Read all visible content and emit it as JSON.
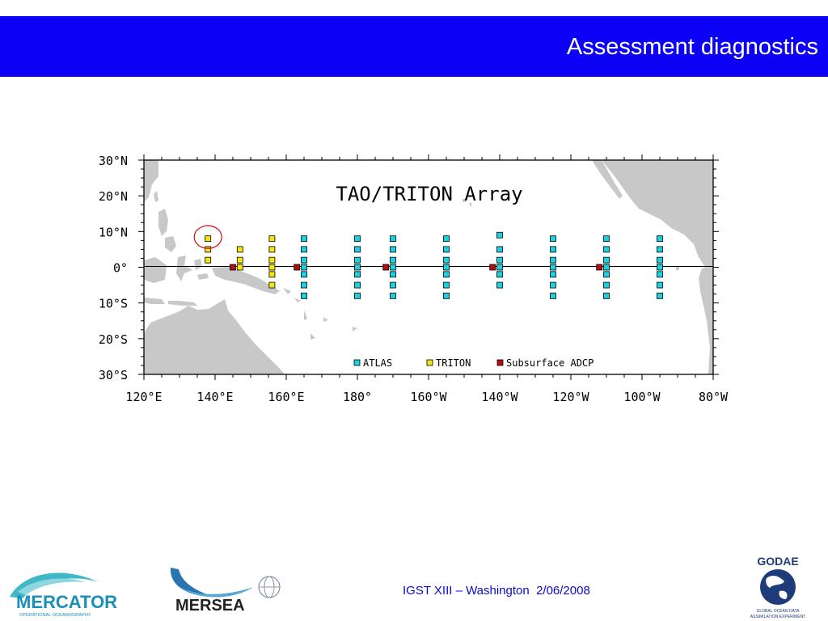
{
  "header": {
    "title": "Assessment diagnostics"
  },
  "map": {
    "title": "TAO/TRITON Array",
    "lat_labels": [
      "30°N",
      "20°N",
      "10°N",
      "0°",
      "10°S",
      "20°S",
      "30°S"
    ],
    "lon_labels": [
      "120°E",
      "140°E",
      "160°E",
      "180°",
      "160°W",
      "140°W",
      "120°W",
      "100°W",
      "80°W"
    ],
    "lon_range": [
      120,
      280
    ],
    "lat_range": [
      -30,
      30
    ],
    "colors": {
      "land": "#c8c8c8",
      "ocean": "#ffffff",
      "ATLAS": "#19d2e1",
      "TRITON": "#f5e612",
      "Subsurface ADCP": "#b30f0f",
      "highlight": "#d51a1a"
    },
    "legend": [
      {
        "key": "ATLAS",
        "label": "ATLAS"
      },
      {
        "key": "TRITON",
        "label": "TRITON"
      },
      {
        "key": "Subsurface ADCP",
        "label": "Subsurface ADCP"
      }
    ],
    "moorings": {
      "TRITON": [
        {
          "lon": 138,
          "lats": [
            8,
            5,
            2
          ]
        },
        {
          "lon": 147,
          "lats": [
            5,
            2,
            0
          ]
        },
        {
          "lon": 156,
          "lats": [
            8,
            5,
            2,
            0,
            -2,
            -5
          ]
        }
      ],
      "ATLAS": [
        {
          "lon": 165,
          "lats": [
            8,
            5,
            2,
            0,
            -2,
            -5,
            -8
          ]
        },
        {
          "lon": 180,
          "lats": [
            8,
            5,
            2,
            0,
            -2,
            -5,
            -8
          ]
        },
        {
          "lon": 190,
          "lats": [
            8,
            5,
            2,
            0,
            -2,
            -5,
            -8
          ]
        },
        {
          "lon": 205,
          "lats": [
            8,
            5,
            2,
            0,
            -2,
            -5,
            -8
          ]
        },
        {
          "lon": 220,
          "lats": [
            9,
            5,
            2,
            0,
            -2,
            -5
          ]
        },
        {
          "lon": 235,
          "lats": [
            8,
            5,
            2,
            0,
            -2,
            -5,
            -8
          ]
        },
        {
          "lon": 250,
          "lats": [
            8,
            5,
            2,
            0,
            -2,
            -5,
            -8
          ]
        },
        {
          "lon": 265,
          "lats": [
            8,
            5,
            2,
            0,
            -2,
            -5,
            -8
          ]
        }
      ],
      "Subsurface ADCP": [
        {
          "lon": 145,
          "lats": [
            0
          ]
        },
        {
          "lon": 163,
          "lats": [
            0
          ]
        },
        {
          "lon": 188,
          "lats": [
            0
          ]
        },
        {
          "lon": 218,
          "lats": [
            0
          ]
        },
        {
          "lon": 248,
          "lats": [
            0
          ]
        }
      ]
    },
    "highlight": {
      "lon": 138,
      "lat": 8
    }
  },
  "footer": {
    "text": "IGST XIII – Washington  2/06/2008",
    "mercator_name": "MERCATOR",
    "mercator_sub": "OPERATIONAL OCEANOGRAPHY",
    "mersea_name": "MERSEA",
    "godae_name": "GODAE",
    "godae_sub1": "GLOBAL OCEAN DATA",
    "godae_sub2": "ASSIMILATION EXPERIMENT"
  }
}
